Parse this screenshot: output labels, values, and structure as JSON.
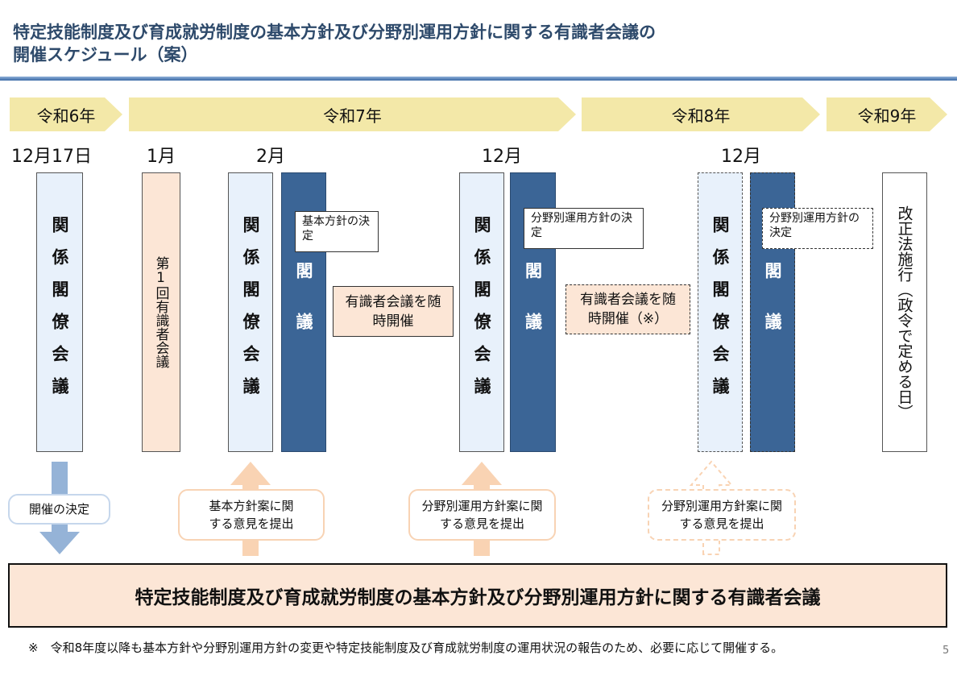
{
  "title": {
    "line1": "特定技能制度及び育成就労制度の基本方針及び分野別運用方針に関する有識者会議の",
    "line2": "開催スケジュール（案）"
  },
  "years": [
    "令和6年",
    "令和7年",
    "令和8年",
    "令和9年"
  ],
  "months": [
    "12月17日",
    "1月",
    "2月",
    "12月",
    "12月"
  ],
  "boxes": {
    "kakuryo": "関係閣僚会議",
    "kakugi": "閣議",
    "first_meeting": "第1回有識者会議",
    "enforcement": "改正法施行（政令で定める日）"
  },
  "callouts": {
    "basic_decision": "基本方針の決定",
    "field_decision": "分野別運用方針の決定",
    "meeting_anytime": "有識者会議を随時開催",
    "meeting_anytime_note": "有識者会議を随時開催（※）"
  },
  "arrows": {
    "decision": "開催の決定",
    "basic_opinion": "基本方針案に関する意見を提出",
    "field_opinion": "分野別運用方針案に関する意見を提出"
  },
  "bottom_box": "特定技能制度及び育成就労制度の基本方針及び分野別運用方針に関する有識者会議",
  "footnote": "※　令和8年度以降も基本方針や分野別運用方針の変更や特定技能制度及び育成就労制度の運用状況の報告のため、必要に応じて開催する。",
  "page_number": "5",
  "colors": {
    "title": "#2E4A6B",
    "year_bar": "#F3E8A8",
    "pale_blue": "#E8F1FB",
    "dark_blue": "#3B6596",
    "peach": "#FCE6D6",
    "arrow_blue": "#95B3D7",
    "arrow_peach": "#F9D3B3"
  }
}
